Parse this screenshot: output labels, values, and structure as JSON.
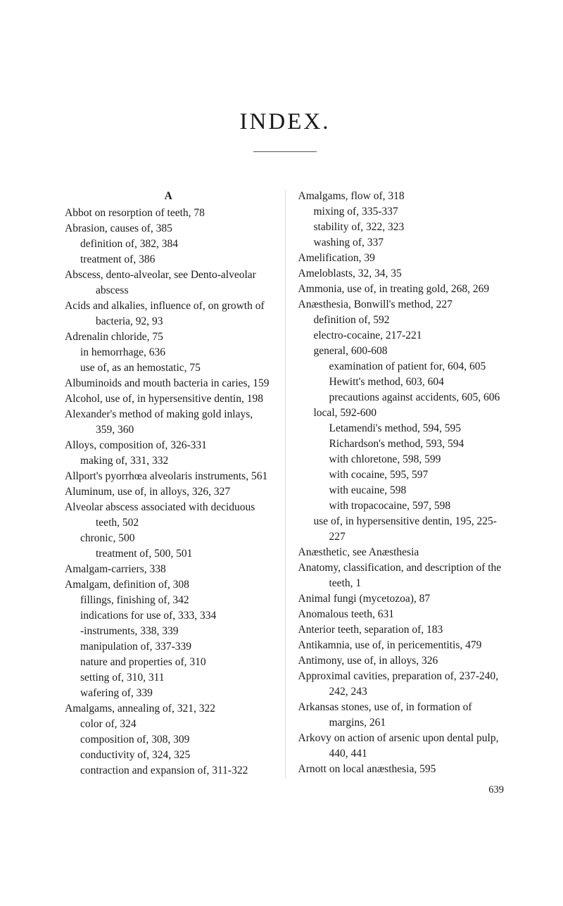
{
  "title": "INDEX.",
  "sectionA": "A",
  "pageNumber": "639",
  "left": [
    {
      "t": "Abbot on resorption of teeth, 78",
      "cls": "entry"
    },
    {
      "t": "Abrasion, causes of, 385",
      "cls": "entry"
    },
    {
      "t": "definition of, 382, 384",
      "cls": "entry i1"
    },
    {
      "t": "treatment of, 386",
      "cls": "entry i1"
    },
    {
      "t": "Abscess, dento-alveolar, see Dento-alveolar abscess",
      "cls": "entry"
    },
    {
      "t": "Acids and alkalies, influence of, on growth of bacteria, 92, 93",
      "cls": "entry"
    },
    {
      "t": "Adrenalin chloride, 75",
      "cls": "entry"
    },
    {
      "t": "in hemorrhage, 636",
      "cls": "entry i1"
    },
    {
      "t": "use of, as an hemostatic, 75",
      "cls": "entry i1"
    },
    {
      "t": "Albuminoids and mouth bacteria in caries, 159",
      "cls": "entry"
    },
    {
      "t": "Alcohol, use of, in hypersensitive dentin, 198",
      "cls": "entry"
    },
    {
      "t": "Alexander's method of making gold inlays, 359, 360",
      "cls": "entry"
    },
    {
      "t": "Alloys, composition of, 326-331",
      "cls": "entry"
    },
    {
      "t": "making of, 331, 332",
      "cls": "entry i1"
    },
    {
      "t": "Allport's pyorrhœa alveolaris instruments, 561",
      "cls": "entry"
    },
    {
      "t": "Aluminum, use of, in alloys, 326, 327",
      "cls": "entry"
    },
    {
      "t": "Alveolar abscess associated with deciduous teeth, 502",
      "cls": "entry"
    },
    {
      "t": "chronic, 500",
      "cls": "entry i1"
    },
    {
      "t": "treatment of, 500, 501",
      "cls": "entry i2"
    },
    {
      "t": "Amalgam-carriers, 338",
      "cls": "entry"
    },
    {
      "t": "Amalgam, definition of, 308",
      "cls": "entry"
    },
    {
      "t": "fillings, finishing of, 342",
      "cls": "entry i1"
    },
    {
      "t": "indications for use of, 333, 334",
      "cls": "entry i1"
    },
    {
      "t": "-instruments, 338, 339",
      "cls": "entry i1"
    },
    {
      "t": "manipulation of, 337-339",
      "cls": "entry i1"
    },
    {
      "t": "nature and properties of, 310",
      "cls": "entry i1"
    },
    {
      "t": "setting of, 310, 311",
      "cls": "entry i1"
    },
    {
      "t": "wafering of, 339",
      "cls": "entry i1"
    },
    {
      "t": "Amalgams, annealing of, 321, 322",
      "cls": "entry"
    },
    {
      "t": "color of, 324",
      "cls": "entry i1"
    },
    {
      "t": "composition of, 308, 309",
      "cls": "entry i1"
    },
    {
      "t": "conductivity of, 324, 325",
      "cls": "entry i1"
    },
    {
      "t": "contraction and expansion of, 311-322",
      "cls": "entry i1"
    }
  ],
  "right": [
    {
      "t": "Amalgams, flow of, 318",
      "cls": "entry"
    },
    {
      "t": "mixing of, 335-337",
      "cls": "entry i1"
    },
    {
      "t": "stability of, 322, 323",
      "cls": "entry i1"
    },
    {
      "t": "washing of, 337",
      "cls": "entry i1"
    },
    {
      "t": "Amelification, 39",
      "cls": "entry"
    },
    {
      "t": "Ameloblasts, 32, 34, 35",
      "cls": "entry"
    },
    {
      "t": "Ammonia, use of, in treating gold, 268, 269",
      "cls": "entry"
    },
    {
      "t": "Anæsthesia, Bonwill's method, 227",
      "cls": "entry"
    },
    {
      "t": "definition of, 592",
      "cls": "entry i1"
    },
    {
      "t": "electro-cocaine, 217-221",
      "cls": "entry i1"
    },
    {
      "t": "general, 600-608",
      "cls": "entry i1"
    },
    {
      "t": "examination of patient for, 604, 605",
      "cls": "entry i2"
    },
    {
      "t": "Hewitt's method, 603, 604",
      "cls": "entry i2"
    },
    {
      "t": "precautions against accidents, 605, 606",
      "cls": "entry i2"
    },
    {
      "t": "local, 592-600",
      "cls": "entry i1"
    },
    {
      "t": "Letamendi's method, 594, 595",
      "cls": "entry i2"
    },
    {
      "t": "Richardson's method, 593, 594",
      "cls": "entry i2"
    },
    {
      "t": "with chloretone, 598, 599",
      "cls": "entry i2"
    },
    {
      "t": "with cocaine, 595, 597",
      "cls": "entry i2"
    },
    {
      "t": "with eucaine, 598",
      "cls": "entry i2"
    },
    {
      "t": "with tropacocaine, 597, 598",
      "cls": "entry i2"
    },
    {
      "t": "use of, in hypersensitive dentin, 195, 225-227",
      "cls": "entry i1"
    },
    {
      "t": "Anæsthetic, see Anæsthesia",
      "cls": "entry"
    },
    {
      "t": "Anatomy, classification, and description of the teeth, 1",
      "cls": "entry"
    },
    {
      "t": "Animal fungi (mycetozoa), 87",
      "cls": "entry"
    },
    {
      "t": "Anomalous teeth, 631",
      "cls": "entry"
    },
    {
      "t": "Anterior teeth, separation of, 183",
      "cls": "entry"
    },
    {
      "t": "Antikamnia, use of, in pericementitis, 479",
      "cls": "entry"
    },
    {
      "t": "Antimony, use of, in alloys, 326",
      "cls": "entry"
    },
    {
      "t": "Approximal cavities, preparation of, 237-240, 242, 243",
      "cls": "entry"
    },
    {
      "t": "Arkansas stones, use of, in formation of margins, 261",
      "cls": "entry"
    },
    {
      "t": "Arkovy on action of arsenic upon dental pulp, 440, 441",
      "cls": "entry"
    },
    {
      "t": "Arnott on local anæsthesia, 595",
      "cls": "entry"
    }
  ]
}
